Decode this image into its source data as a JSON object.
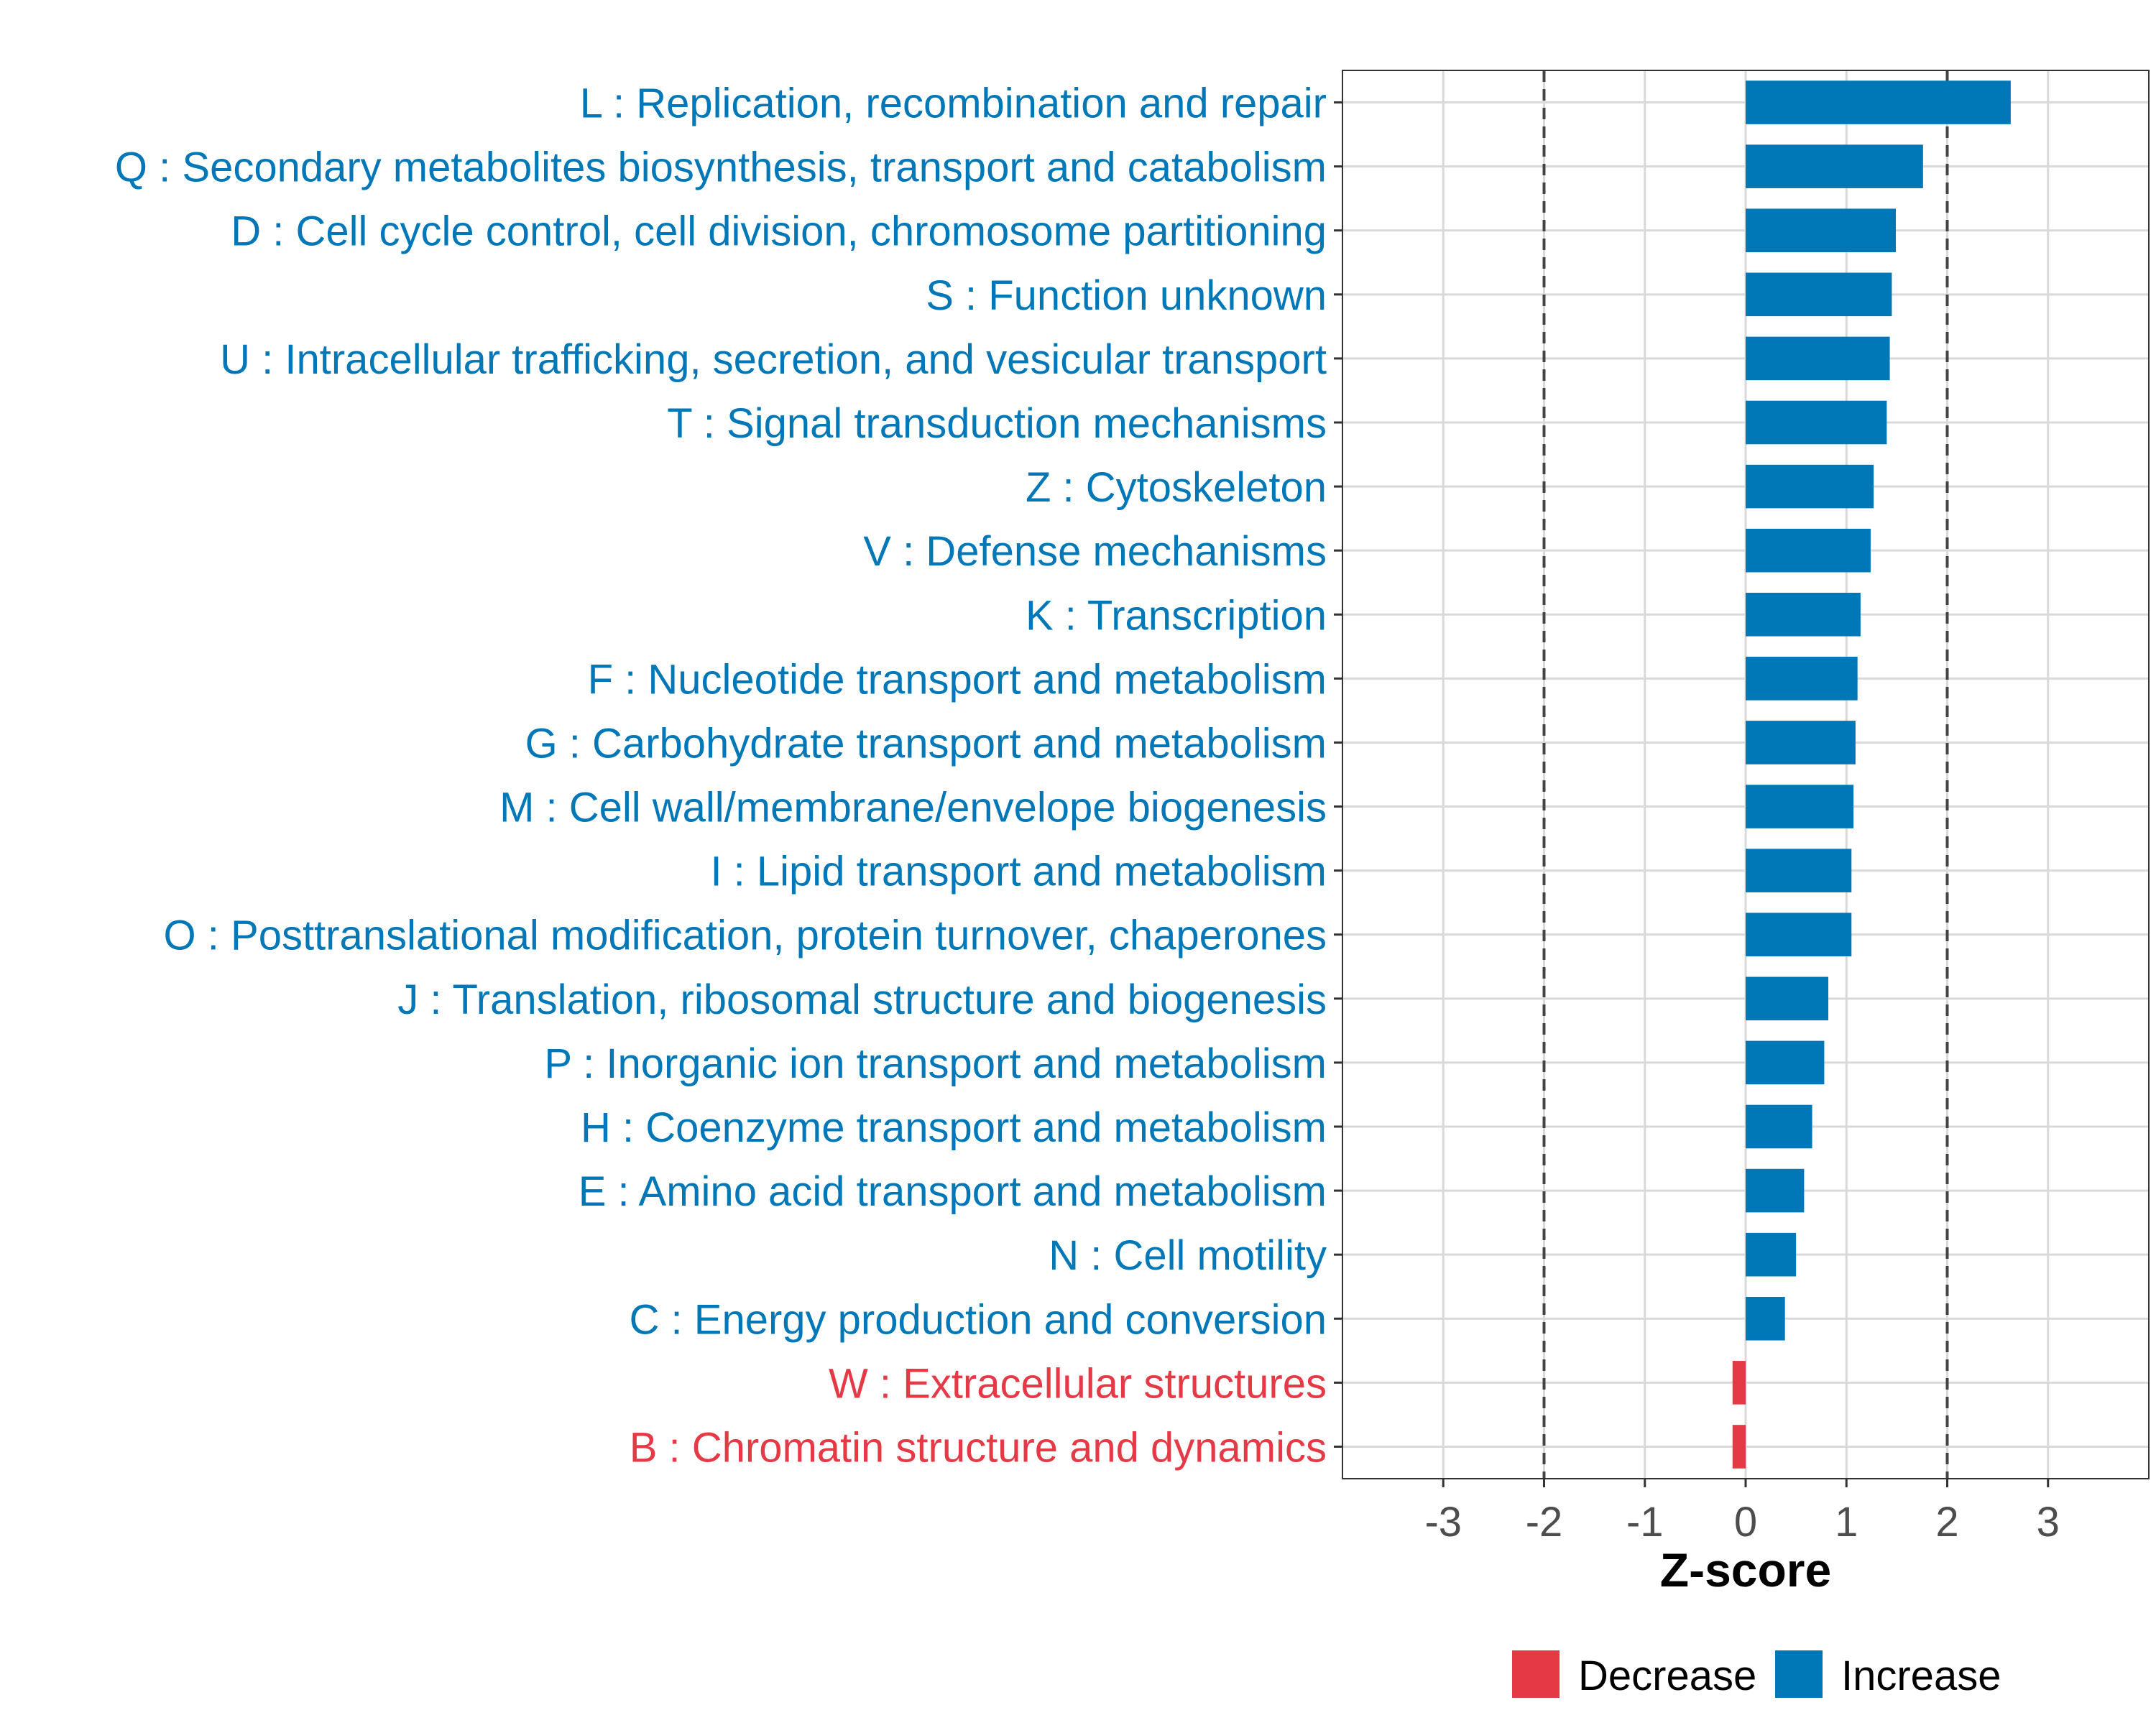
{
  "chart_data": {
    "type": "bar",
    "orientation": "horizontal",
    "title": "",
    "xlabel": "Z-score",
    "ylabel": "",
    "xlim": [
      -4,
      4
    ],
    "xticks": [
      -3,
      -2,
      -1,
      0,
      1,
      2,
      3
    ],
    "reference_lines": [
      -2,
      2
    ],
    "grid": true,
    "legend_position": "bottom",
    "colors": {
      "Increase": "#0077B6",
      "Decrease": "#E63946"
    },
    "categories": [
      "L : Replication, recombination and repair",
      "Q : Secondary metabolites biosynthesis, transport and catabolism",
      "D : Cell cycle control, cell division, chromosome partitioning",
      "S : Function unknown",
      "U : Intracellular trafficking, secretion, and vesicular transport",
      "T : Signal transduction mechanisms",
      "Z : Cytoskeleton",
      "V : Defense mechanisms",
      "K : Transcription",
      "F : Nucleotide transport and metabolism",
      "G : Carbohydrate transport and metabolism",
      "M : Cell wall/membrane/envelope biogenesis",
      "I : Lipid transport and metabolism",
      "O : Posttranslational modification, protein turnover, chaperones",
      "J : Translation, ribosomal structure and biogenesis",
      "P : Inorganic ion transport and metabolism",
      "H : Coenzyme transport and metabolism",
      "E : Amino acid transport and metabolism",
      "N : Cell motility",
      "C : Energy production and conversion",
      "W : Extracellular structures",
      "B : Chromatin structure and dynamics"
    ],
    "values": [
      2.63,
      1.76,
      1.49,
      1.45,
      1.43,
      1.4,
      1.27,
      1.24,
      1.14,
      1.11,
      1.09,
      1.07,
      1.05,
      1.05,
      0.82,
      0.78,
      0.66,
      0.58,
      0.5,
      0.39,
      -0.13,
      -0.13
    ],
    "groups": [
      "Increase",
      "Increase",
      "Increase",
      "Increase",
      "Increase",
      "Increase",
      "Increase",
      "Increase",
      "Increase",
      "Increase",
      "Increase",
      "Increase",
      "Increase",
      "Increase",
      "Increase",
      "Increase",
      "Increase",
      "Increase",
      "Increase",
      "Increase",
      "Decrease",
      "Decrease"
    ],
    "legend": [
      "Decrease",
      "Increase"
    ]
  }
}
